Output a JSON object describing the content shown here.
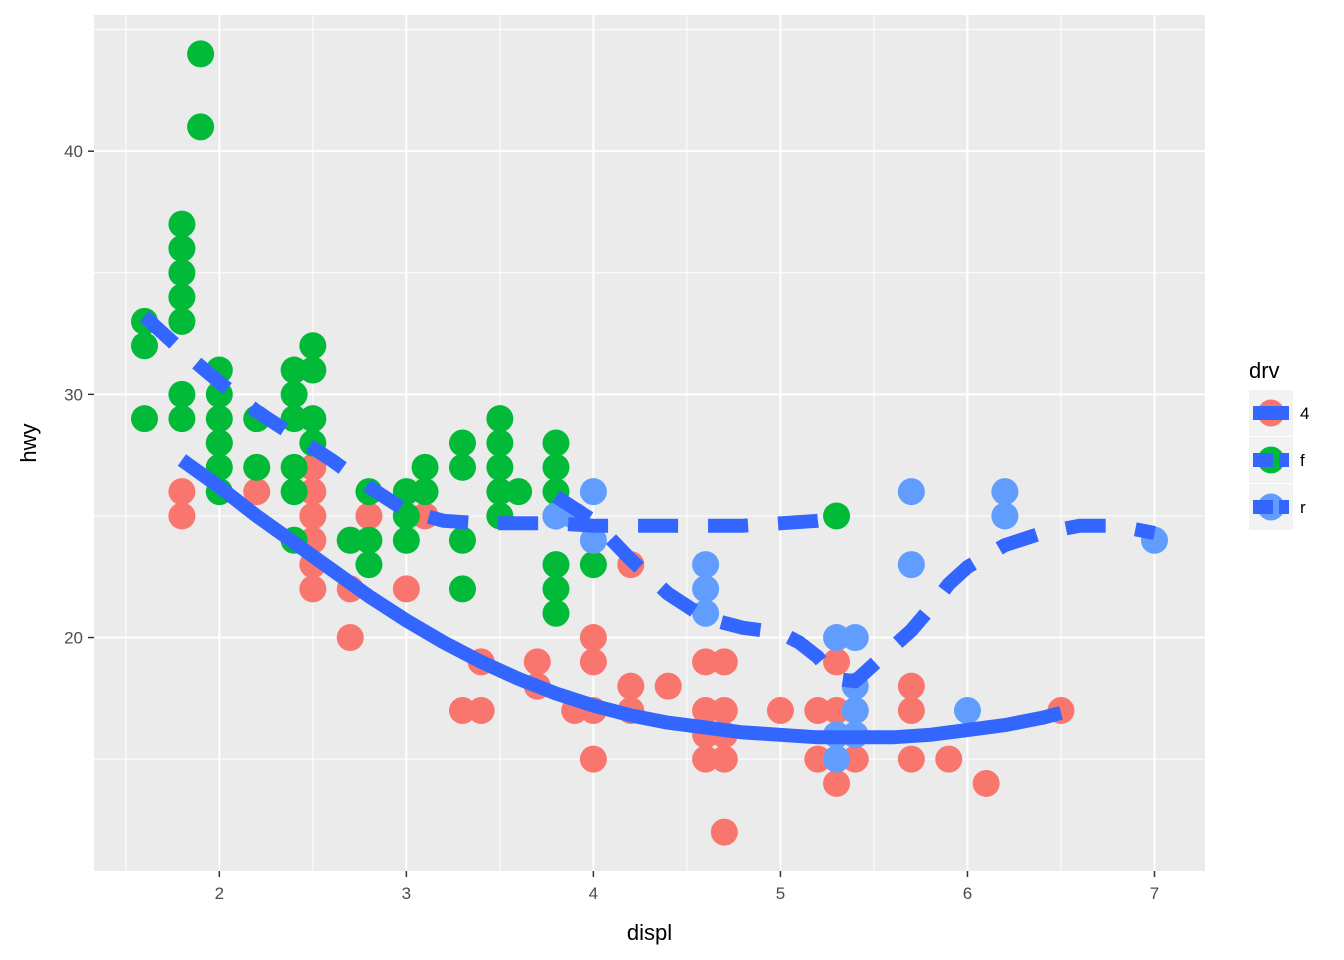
{
  "chart_data": {
    "type": "scatter",
    "title": "",
    "xlabel": "displ",
    "ylabel": "hwy",
    "xlim": [
      1.33,
      7.27
    ],
    "ylim": [
      10.4,
      45.6
    ],
    "x_ticks": [
      2,
      3,
      4,
      5,
      6,
      7
    ],
    "y_ticks": [
      20,
      30,
      40
    ],
    "grid": true,
    "legend": {
      "title": "drv",
      "placement": "right",
      "entries": [
        "4",
        "f",
        "r"
      ]
    },
    "colors": {
      "4": "#F8766D",
      "f": "#00BA38",
      "r": "#619CFF",
      "smooth": "#3366FF"
    },
    "series": [
      {
        "name": "4",
        "type": "points",
        "points": [
          [
            1.8,
            26
          ],
          [
            1.8,
            25
          ],
          [
            2.0,
            28
          ],
          [
            2.2,
            26
          ],
          [
            2.5,
            27
          ],
          [
            2.5,
            26
          ],
          [
            2.5,
            25
          ],
          [
            2.5,
            24
          ],
          [
            2.5,
            23
          ],
          [
            2.5,
            22
          ],
          [
            2.7,
            24
          ],
          [
            2.7,
            22
          ],
          [
            2.7,
            20
          ],
          [
            2.8,
            25
          ],
          [
            3.0,
            22
          ],
          [
            3.1,
            25
          ],
          [
            3.3,
            17
          ],
          [
            3.4,
            19
          ],
          [
            3.4,
            17
          ],
          [
            3.7,
            19
          ],
          [
            3.7,
            18
          ],
          [
            3.9,
            17
          ],
          [
            4.0,
            20
          ],
          [
            4.0,
            19
          ],
          [
            4.0,
            17
          ],
          [
            4.0,
            15
          ],
          [
            4.2,
            23
          ],
          [
            4.2,
            18
          ],
          [
            4.2,
            17
          ],
          [
            4.4,
            18
          ],
          [
            4.6,
            19
          ],
          [
            4.6,
            17
          ],
          [
            4.6,
            16
          ],
          [
            4.6,
            15
          ],
          [
            4.7,
            19
          ],
          [
            4.7,
            17
          ],
          [
            4.7,
            16
          ],
          [
            4.7,
            15
          ],
          [
            4.7,
            12
          ],
          [
            5.0,
            17
          ],
          [
            5.2,
            17
          ],
          [
            5.2,
            15
          ],
          [
            5.3,
            19
          ],
          [
            5.3,
            17
          ],
          [
            5.3,
            14
          ],
          [
            5.4,
            17
          ],
          [
            5.4,
            15
          ],
          [
            5.7,
            18
          ],
          [
            5.7,
            17
          ],
          [
            5.7,
            15
          ],
          [
            5.9,
            15
          ],
          [
            6.1,
            14
          ],
          [
            6.5,
            17
          ]
        ]
      },
      {
        "name": "f",
        "type": "points",
        "points": [
          [
            1.6,
            33
          ],
          [
            1.6,
            32
          ],
          [
            1.6,
            29
          ],
          [
            1.8,
            33
          ],
          [
            1.8,
            30
          ],
          [
            1.8,
            29
          ],
          [
            1.8,
            34
          ],
          [
            1.8,
            35
          ],
          [
            1.8,
            36
          ],
          [
            1.8,
            37
          ],
          [
            1.9,
            44
          ],
          [
            1.9,
            41
          ],
          [
            2.0,
            31
          ],
          [
            2.0,
            30
          ],
          [
            2.0,
            29
          ],
          [
            2.0,
            28
          ],
          [
            2.0,
            27
          ],
          [
            2.0,
            26
          ],
          [
            2.2,
            29
          ],
          [
            2.2,
            27
          ],
          [
            2.4,
            31
          ],
          [
            2.4,
            30
          ],
          [
            2.4,
            29
          ],
          [
            2.4,
            27
          ],
          [
            2.4,
            26
          ],
          [
            2.4,
            24
          ],
          [
            2.5,
            32
          ],
          [
            2.5,
            31
          ],
          [
            2.5,
            29
          ],
          [
            2.5,
            28
          ],
          [
            2.7,
            24
          ],
          [
            2.8,
            26
          ],
          [
            2.8,
            24
          ],
          [
            2.8,
            23
          ],
          [
            3.0,
            26
          ],
          [
            3.0,
            25
          ],
          [
            3.0,
            24
          ],
          [
            3.1,
            27
          ],
          [
            3.1,
            26
          ],
          [
            3.3,
            28
          ],
          [
            3.3,
            27
          ],
          [
            3.3,
            24
          ],
          [
            3.3,
            22
          ],
          [
            3.5,
            29
          ],
          [
            3.5,
            28
          ],
          [
            3.5,
            27
          ],
          [
            3.5,
            26
          ],
          [
            3.5,
            25
          ],
          [
            3.6,
            26
          ],
          [
            3.8,
            28
          ],
          [
            3.8,
            27
          ],
          [
            3.8,
            26
          ],
          [
            3.8,
            25
          ],
          [
            3.8,
            23
          ],
          [
            3.8,
            22
          ],
          [
            3.8,
            21
          ],
          [
            4.0,
            23
          ],
          [
            5.3,
            25
          ]
        ]
      },
      {
        "name": "r",
        "type": "points",
        "points": [
          [
            3.8,
            25
          ],
          [
            3.9,
            25
          ],
          [
            4.0,
            26
          ],
          [
            4.0,
            24
          ],
          [
            4.6,
            23
          ],
          [
            4.6,
            22
          ],
          [
            4.6,
            21
          ],
          [
            5.3,
            20
          ],
          [
            5.3,
            16
          ],
          [
            5.3,
            15
          ],
          [
            5.4,
            20
          ],
          [
            5.4,
            18
          ],
          [
            5.4,
            17
          ],
          [
            5.4,
            16
          ],
          [
            5.7,
            26
          ],
          [
            5.7,
            23
          ],
          [
            6.0,
            17
          ],
          [
            6.2,
            26
          ],
          [
            6.2,
            25
          ],
          [
            7.0,
            24
          ]
        ]
      },
      {
        "name": "4",
        "type": "smooth",
        "linetype": "solid",
        "points": [
          [
            1.8,
            27.3
          ],
          [
            2.0,
            26.2
          ],
          [
            2.2,
            25.0
          ],
          [
            2.4,
            23.9
          ],
          [
            2.6,
            22.8
          ],
          [
            2.8,
            21.7
          ],
          [
            3.0,
            20.7
          ],
          [
            3.2,
            19.8
          ],
          [
            3.4,
            19.0
          ],
          [
            3.6,
            18.3
          ],
          [
            3.8,
            17.7
          ],
          [
            4.0,
            17.2
          ],
          [
            4.2,
            16.8
          ],
          [
            4.4,
            16.5
          ],
          [
            4.6,
            16.3
          ],
          [
            4.8,
            16.1
          ],
          [
            5.0,
            16.0
          ],
          [
            5.2,
            15.9
          ],
          [
            5.4,
            15.9
          ],
          [
            5.6,
            15.9
          ],
          [
            5.8,
            16.0
          ],
          [
            6.0,
            16.2
          ],
          [
            6.2,
            16.4
          ],
          [
            6.4,
            16.7
          ],
          [
            6.5,
            16.9
          ]
        ]
      },
      {
        "name": "f",
        "type": "smooth",
        "linetype": "dashed",
        "points": [
          [
            1.6,
            33.2
          ],
          [
            1.8,
            31.8
          ],
          [
            2.0,
            30.5
          ],
          [
            2.2,
            29.3
          ],
          [
            2.4,
            28.3
          ],
          [
            2.6,
            27.3
          ],
          [
            2.8,
            26.2
          ],
          [
            3.0,
            25.2
          ],
          [
            3.2,
            24.8
          ],
          [
            3.4,
            24.7
          ],
          [
            3.6,
            24.7
          ],
          [
            3.8,
            24.7
          ],
          [
            4.0,
            24.6
          ],
          [
            4.2,
            24.6
          ],
          [
            4.4,
            24.6
          ],
          [
            4.6,
            24.6
          ],
          [
            4.8,
            24.6
          ],
          [
            5.0,
            24.7
          ],
          [
            5.2,
            24.8
          ],
          [
            5.3,
            24.9
          ]
        ]
      },
      {
        "name": "r",
        "type": "smooth",
        "linetype": "dashed",
        "points": [
          [
            3.8,
            25.8
          ],
          [
            4.0,
            24.8
          ],
          [
            4.2,
            23.2
          ],
          [
            4.4,
            21.8
          ],
          [
            4.6,
            20.8
          ],
          [
            4.8,
            20.4
          ],
          [
            5.0,
            20.2
          ],
          [
            5.1,
            19.8
          ],
          [
            5.2,
            19.2
          ],
          [
            5.3,
            18.3
          ],
          [
            5.4,
            18.2
          ],
          [
            5.5,
            18.9
          ],
          [
            5.6,
            19.6
          ],
          [
            5.7,
            20.3
          ],
          [
            5.8,
            21.2
          ],
          [
            5.9,
            22.2
          ],
          [
            6.0,
            22.9
          ],
          [
            6.2,
            23.8
          ],
          [
            6.4,
            24.3
          ],
          [
            6.6,
            24.6
          ],
          [
            6.8,
            24.6
          ],
          [
            7.0,
            24.3
          ]
        ]
      }
    ]
  }
}
